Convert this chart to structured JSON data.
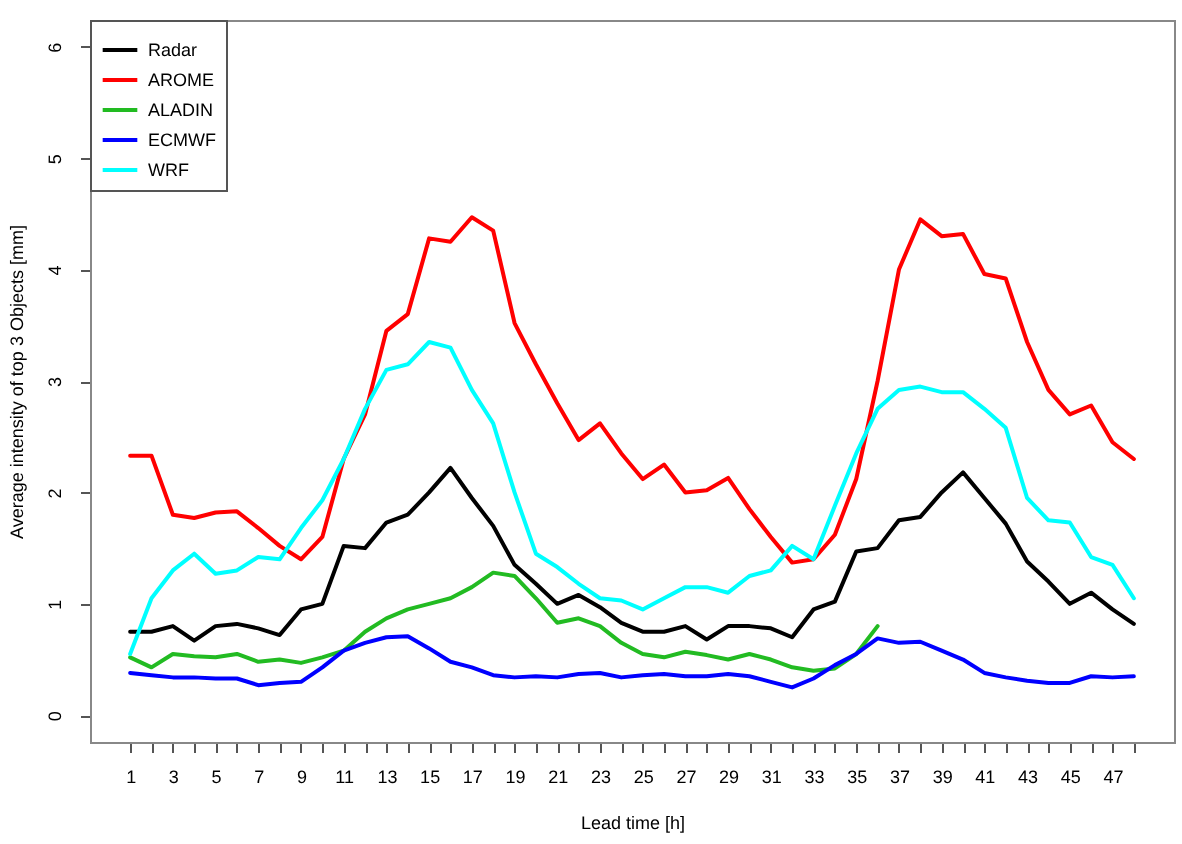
{
  "chart_data": {
    "type": "line",
    "xlabel": "Lead time [h]",
    "ylabel": "Average intensity of top 3 Objects [mm]",
    "x": [
      1,
      2,
      3,
      4,
      5,
      6,
      7,
      8,
      9,
      10,
      11,
      12,
      13,
      14,
      15,
      16,
      17,
      18,
      19,
      20,
      21,
      22,
      23,
      24,
      25,
      26,
      27,
      28,
      29,
      30,
      31,
      32,
      33,
      34,
      35,
      36,
      37,
      38,
      39,
      40,
      41,
      42,
      43,
      44,
      45,
      46,
      47,
      48
    ],
    "series": [
      {
        "name": "Radar",
        "color": "#000000",
        "values": [
          0.75,
          0.75,
          0.8,
          0.67,
          0.8,
          0.82,
          0.78,
          0.72,
          0.95,
          1.0,
          1.52,
          1.5,
          1.73,
          1.8,
          2.0,
          2.22,
          1.95,
          1.7,
          1.35,
          1.18,
          1.0,
          1.08,
          0.97,
          0.83,
          0.75,
          0.75,
          0.8,
          0.68,
          0.8,
          0.8,
          0.78,
          0.7,
          0.95,
          1.02,
          1.47,
          1.5,
          1.75,
          1.78,
          2.0,
          2.18,
          1.95,
          1.72,
          1.38,
          1.2,
          1.0,
          1.1,
          0.95,
          0.82
        ]
      },
      {
        "name": "AROME",
        "color": "#ff0000",
        "values": [
          2.33,
          2.33,
          1.8,
          1.77,
          1.82,
          1.83,
          1.68,
          1.52,
          1.4,
          1.6,
          2.3,
          2.7,
          3.45,
          3.6,
          4.28,
          4.25,
          4.47,
          4.35,
          3.52,
          3.15,
          2.8,
          2.47,
          2.62,
          2.35,
          2.12,
          2.25,
          2.0,
          2.02,
          2.13,
          1.85,
          1.6,
          1.37,
          1.4,
          1.62,
          2.12,
          3.0,
          4.0,
          4.45,
          4.3,
          4.32,
          3.96,
          3.92,
          3.35,
          2.92,
          2.7,
          2.78,
          2.45,
          2.3
        ]
      },
      {
        "name": "ALADIN",
        "color": "#22bb22",
        "values": [
          0.52,
          0.43,
          0.55,
          0.53,
          0.52,
          0.55,
          0.48,
          0.5,
          0.47,
          0.52,
          0.58,
          0.75,
          0.87,
          0.95,
          1.0,
          1.05,
          1.15,
          1.28,
          1.25,
          1.05,
          0.83,
          0.87,
          0.8,
          0.65,
          0.55,
          0.52,
          0.57,
          0.54,
          0.5,
          0.55,
          0.5,
          0.43,
          0.4,
          0.42,
          0.55,
          0.8,
          null,
          null,
          null,
          null,
          null,
          null,
          null,
          null,
          null,
          null,
          null,
          null
        ]
      },
      {
        "name": "ECMWF",
        "color": "#0000ff",
        "values": [
          0.38,
          0.36,
          0.34,
          0.34,
          0.33,
          0.33,
          0.27,
          0.29,
          0.3,
          0.43,
          0.58,
          0.65,
          0.7,
          0.71,
          0.6,
          0.48,
          0.43,
          0.36,
          0.34,
          0.35,
          0.34,
          0.37,
          0.38,
          0.34,
          0.36,
          0.37,
          0.35,
          0.35,
          0.37,
          0.35,
          0.3,
          0.25,
          0.33,
          0.45,
          0.55,
          0.69,
          0.65,
          0.66,
          0.58,
          0.5,
          0.38,
          0.34,
          0.31,
          0.29,
          0.29,
          0.35,
          0.34,
          0.35
        ]
      },
      {
        "name": "WRF",
        "color": "#00ffff",
        "values": [
          0.55,
          1.05,
          1.3,
          1.45,
          1.27,
          1.3,
          1.42,
          1.4,
          1.68,
          1.93,
          2.3,
          2.75,
          3.1,
          3.15,
          3.35,
          3.3,
          2.92,
          2.62,
          2.0,
          1.45,
          1.33,
          1.18,
          1.05,
          1.03,
          0.95,
          1.05,
          1.15,
          1.15,
          1.1,
          1.25,
          1.3,
          1.52,
          1.4,
          1.88,
          2.35,
          2.75,
          2.92,
          2.95,
          2.9,
          2.9,
          2.75,
          2.58,
          1.95,
          1.75,
          1.73,
          1.42,
          1.35,
          1.05
        ]
      }
    ],
    "xlim": [
      -0.88,
      49.88
    ],
    "xticks": [
      1,
      {
        "value": 2,
        "label": null
      },
      3,
      {
        "value": 4,
        "label": null
      },
      5,
      {
        "value": 6,
        "label": null
      },
      7,
      {
        "value": 8,
        "label": null
      },
      9,
      {
        "value": 10,
        "label": null
      },
      11,
      {
        "value": 12,
        "label": null
      },
      13,
      {
        "value": 14,
        "label": null
      },
      15,
      {
        "value": 16,
        "label": null
      },
      17,
      {
        "value": 18,
        "label": null
      },
      19,
      {
        "value": 20,
        "label": null
      },
      21,
      {
        "value": 22,
        "label": null
      },
      23,
      {
        "value": 24,
        "label": null
      },
      25,
      {
        "value": 26,
        "label": null
      },
      27,
      {
        "value": 28,
        "label": null
      },
      29,
      {
        "value": 30,
        "label": null
      },
      31,
      {
        "value": 32,
        "label": null
      },
      33,
      {
        "value": 34,
        "label": null
      },
      35,
      {
        "value": 36,
        "label": null
      },
      37,
      {
        "value": 38,
        "label": null
      },
      39,
      {
        "value": 40,
        "label": null
      },
      41,
      {
        "value": 42,
        "label": null
      },
      43,
      {
        "value": 44,
        "label": null
      },
      45,
      {
        "value": 46,
        "label": null
      },
      47,
      {
        "value": 48,
        "label": null
      }
    ],
    "ylim": [
      -0.24,
      6.24
    ],
    "yticks": [
      0,
      1,
      2,
      3,
      4,
      5,
      6
    ],
    "legend": "top left",
    "grid": false,
    "line_style": "solid",
    "marker": "none"
  }
}
